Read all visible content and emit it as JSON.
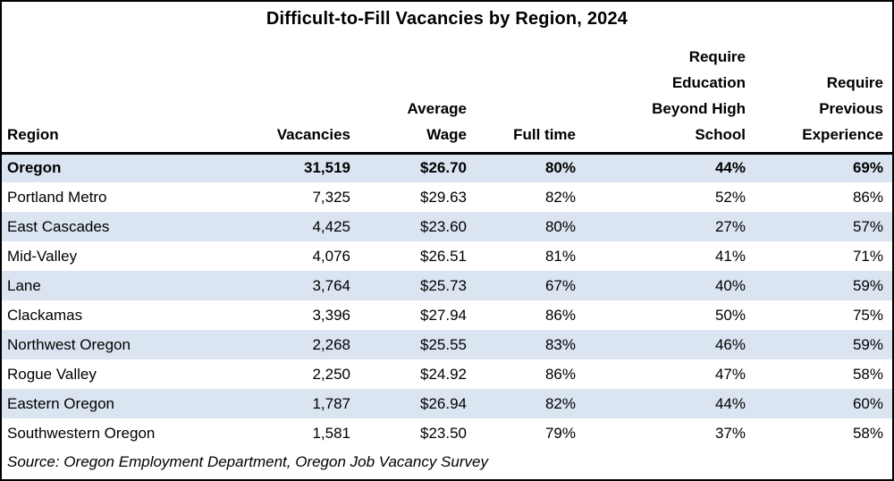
{
  "title": "Difficult-to-Fill Vacancies by Region, 2024",
  "columns": {
    "region": "Region",
    "vacancies": "Vacancies",
    "avg_wage": "Average\nWage",
    "full_time": "Full time",
    "require_education": "Require\nEducation\nBeyond High\nSchool",
    "require_experience": "Require\nPrevious\nExperience"
  },
  "rows": [
    {
      "region": "Oregon",
      "vacancies": "31,519",
      "avg_wage": "$26.70",
      "full_time": "80%",
      "require_education": "44%",
      "require_experience": "69%"
    },
    {
      "region": "Portland Metro",
      "vacancies": "7,325",
      "avg_wage": "$29.63",
      "full_time": "82%",
      "require_education": "52%",
      "require_experience": "86%"
    },
    {
      "region": "East Cascades",
      "vacancies": "4,425",
      "avg_wage": "$23.60",
      "full_time": "80%",
      "require_education": "27%",
      "require_experience": "57%"
    },
    {
      "region": "Mid-Valley",
      "vacancies": "4,076",
      "avg_wage": "$26.51",
      "full_time": "81%",
      "require_education": "41%",
      "require_experience": "71%"
    },
    {
      "region": "Lane",
      "vacancies": "3,764",
      "avg_wage": "$25.73",
      "full_time": "67%",
      "require_education": "40%",
      "require_experience": "59%"
    },
    {
      "region": "Clackamas",
      "vacancies": "3,396",
      "avg_wage": "$27.94",
      "full_time": "86%",
      "require_education": "50%",
      "require_experience": "75%"
    },
    {
      "region": "Northwest Oregon",
      "vacancies": "2,268",
      "avg_wage": "$25.55",
      "full_time": "83%",
      "require_education": "46%",
      "require_experience": "59%"
    },
    {
      "region": "Rogue Valley",
      "vacancies": "2,250",
      "avg_wage": "$24.92",
      "full_time": "86%",
      "require_education": "47%",
      "require_experience": "58%"
    },
    {
      "region": "Eastern Oregon",
      "vacancies": "1,787",
      "avg_wage": "$26.94",
      "full_time": "82%",
      "require_education": "44%",
      "require_experience": "60%"
    },
    {
      "region": "Southwestern Oregon",
      "vacancies": "1,581",
      "avg_wage": "$23.50",
      "full_time": "79%",
      "require_education": "37%",
      "require_experience": "58%"
    }
  ],
  "source": "Source: Oregon Employment Department, Oregon Job Vacancy Survey",
  "colors": {
    "stripe": "#dbe5f1",
    "border": "#000000",
    "background": "#ffffff",
    "text": "#000000"
  },
  "chart_data": {
    "type": "table",
    "title": "Difficult-to-Fill Vacancies by Region, 2024",
    "columns": [
      "Region",
      "Vacancies",
      "Average Wage",
      "Full time",
      "Require Education Beyond High School",
      "Require Previous Experience"
    ],
    "rows": [
      [
        "Oregon",
        31519,
        26.7,
        80,
        44,
        69
      ],
      [
        "Portland Metro",
        7325,
        29.63,
        82,
        52,
        86
      ],
      [
        "East Cascades",
        4425,
        23.6,
        80,
        27,
        57
      ],
      [
        "Mid-Valley",
        4076,
        26.51,
        81,
        41,
        71
      ],
      [
        "Lane",
        3764,
        25.73,
        67,
        40,
        59
      ],
      [
        "Clackamas",
        3396,
        27.94,
        86,
        50,
        75
      ],
      [
        "Northwest Oregon",
        2268,
        25.55,
        83,
        46,
        59
      ],
      [
        "Rogue Valley",
        2250,
        24.92,
        86,
        47,
        58
      ],
      [
        "Eastern Oregon",
        1787,
        26.94,
        82,
        44,
        60
      ],
      [
        "Southwestern Oregon",
        1581,
        23.5,
        79,
        37,
        58
      ]
    ],
    "total_row": "Oregon",
    "source": "Source: Oregon Employment Department, Oregon Job Vacancy Survey"
  }
}
